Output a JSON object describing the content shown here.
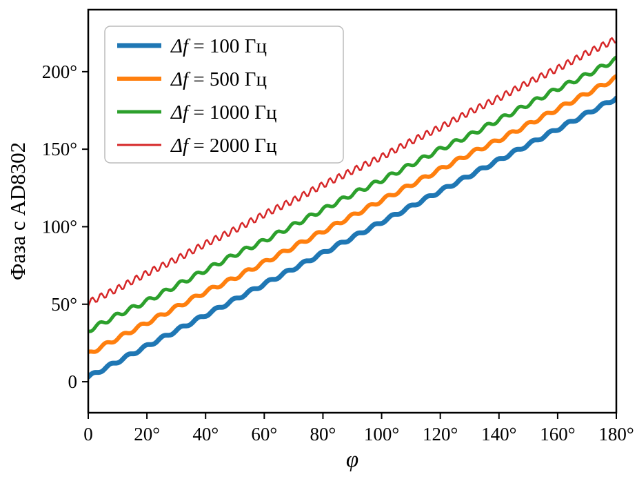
{
  "figure": {
    "background": "#ffffff",
    "axis_color": "#000000",
    "legend_border_color": "#bbbbbb"
  },
  "chart_data": {
    "type": "line",
    "title": "",
    "xlabel": "φ",
    "ylabel": "Фаза с AD8302",
    "xlim": [
      0,
      180
    ],
    "ylim": [
      -20,
      240
    ],
    "x_ticks": [
      0,
      20,
      40,
      60,
      80,
      100,
      120,
      140,
      160,
      180
    ],
    "x_tick_labels": [
      "0",
      "20°",
      "40°",
      "60°",
      "80°",
      "100°",
      "120°",
      "140°",
      "160°",
      "180°"
    ],
    "y_ticks": [
      0,
      50,
      100,
      150,
      200
    ],
    "y_tick_labels": [
      "0",
      "50°",
      "100°",
      "150°",
      "200°"
    ],
    "grid": false,
    "legend_position": "upper left",
    "x_sample": [
      0,
      10,
      20,
      30,
      40,
      50,
      60,
      70,
      80,
      90,
      100,
      110,
      120,
      130,
      140,
      150,
      160,
      170,
      180
    ],
    "series": [
      {
        "name": "Δf = 100 Гц",
        "color": "#1f77b4",
        "line_width": 7,
        "ripple_amplitude": 1.0,
        "ripple_period": 6,
        "y": [
          3,
          13,
          23,
          33,
          43,
          53,
          63,
          73,
          83,
          93,
          103,
          113,
          123,
          133,
          143,
          153,
          163,
          173,
          183
        ]
      },
      {
        "name": "Δf = 500 Гц",
        "color": "#ff7f0e",
        "line_width": 6,
        "ripple_amplitude": 1.2,
        "ripple_period": 6,
        "y": [
          18,
          28,
          38,
          48,
          58,
          67,
          77,
          87,
          97,
          107,
          117,
          127,
          137,
          147,
          156,
          166,
          176,
          186,
          196
        ]
      },
      {
        "name": "Δf = 1000 Гц",
        "color": "#2ca02c",
        "line_width": 5,
        "ripple_amplitude": 1.4,
        "ripple_period": 5.5,
        "y": [
          33,
          43,
          52,
          62,
          72,
          82,
          91,
          101,
          111,
          121,
          130,
          140,
          150,
          159,
          169,
          179,
          189,
          198,
          208
        ]
      },
      {
        "name": "Δf = 2000 Гц",
        "color": "#d62728",
        "line_width": 2.5,
        "ripple_amplitude": 2.2,
        "ripple_period": 3,
        "y": [
          51,
          60,
          70,
          79,
          89,
          98,
          108,
          117,
          127,
          136,
          145,
          155,
          164,
          174,
          183,
          193,
          202,
          212,
          221
        ]
      }
    ]
  }
}
